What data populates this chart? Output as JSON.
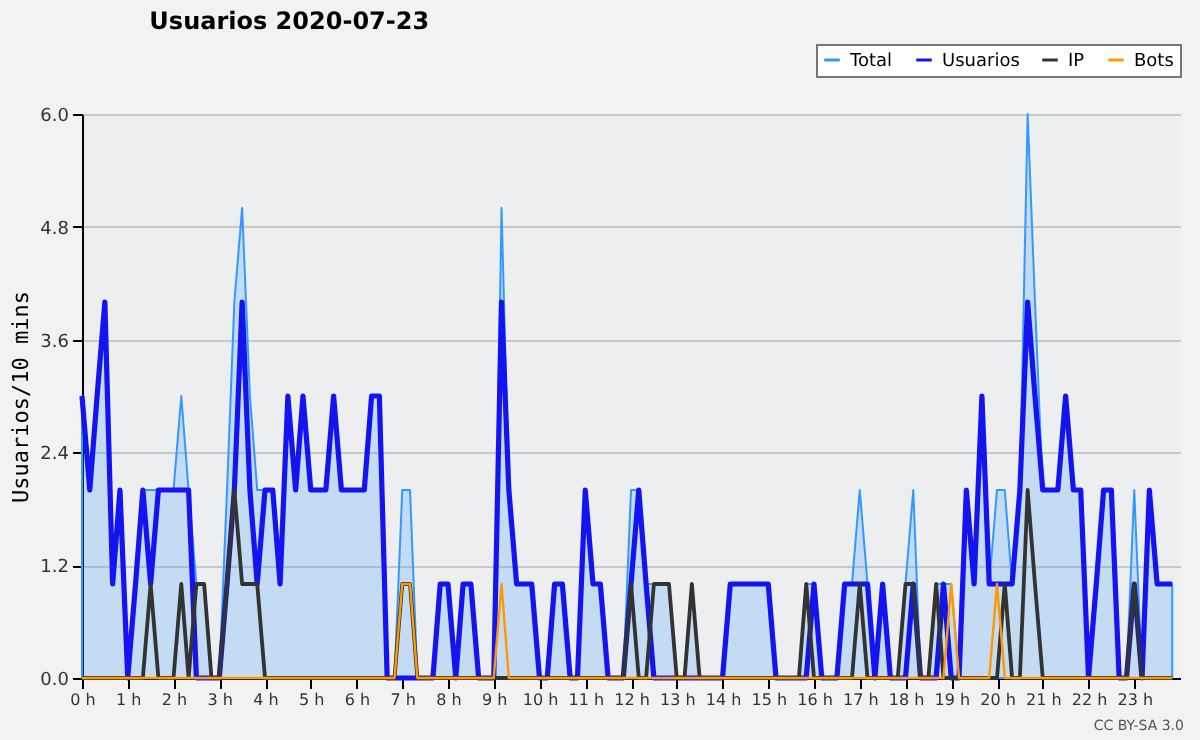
{
  "chart_data": {
    "type": "line",
    "title": "Usuarios  2020-07-23",
    "ylabel": "Usuarios/10 mins",
    "x": [
      0,
      0.17,
      0.33,
      0.5,
      0.67,
      0.83,
      1,
      1.17,
      1.33,
      1.5,
      1.67,
      1.83,
      2,
      2.17,
      2.33,
      2.5,
      2.67,
      2.83,
      3,
      3.17,
      3.33,
      3.5,
      3.67,
      3.83,
      4,
      4.17,
      4.33,
      4.5,
      4.67,
      4.83,
      5,
      5.17,
      5.33,
      5.5,
      5.67,
      5.83,
      6,
      6.17,
      6.33,
      6.5,
      6.67,
      6.83,
      7,
      7.17,
      7.33,
      7.5,
      7.67,
      7.83,
      8,
      8.17,
      8.33,
      8.5,
      8.67,
      8.83,
      9,
      9.17,
      9.33,
      9.5,
      9.67,
      9.83,
      10,
      10.17,
      10.33,
      10.5,
      10.67,
      10.83,
      11,
      11.17,
      11.33,
      11.5,
      11.67,
      11.83,
      12,
      12.17,
      12.33,
      12.5,
      12.67,
      12.83,
      13,
      13.17,
      13.33,
      13.5,
      13.67,
      13.83,
      14,
      14.17,
      14.33,
      14.5,
      14.67,
      14.83,
      15,
      15.17,
      15.33,
      15.5,
      15.67,
      15.83,
      16,
      16.17,
      16.33,
      16.5,
      16.67,
      16.83,
      17,
      17.17,
      17.33,
      17.5,
      17.67,
      17.83,
      18,
      18.17,
      18.33,
      18.5,
      18.67,
      18.83,
      19,
      19.17,
      19.33,
      19.5,
      19.67,
      19.83,
      20,
      20.17,
      20.33,
      20.5,
      20.67,
      20.83,
      21,
      21.17,
      21.33,
      21.5,
      21.67,
      21.83,
      22,
      22.17,
      22.33,
      22.5,
      22.67,
      22.83,
      23,
      23.17,
      23.33,
      23.5,
      23.67,
      23.83
    ],
    "series": [
      {
        "name": "Total",
        "type": "area",
        "color": "#3399ff",
        "values": [
          3,
          2,
          3,
          4,
          1,
          2,
          0,
          1,
          2,
          2,
          2,
          2,
          2,
          3,
          2,
          1,
          1,
          0,
          0,
          2,
          4,
          5,
          3,
          2,
          2,
          2,
          1,
          3,
          2,
          3,
          2,
          2,
          2,
          3,
          2,
          2,
          2,
          2,
          3,
          3,
          0,
          0,
          2,
          2,
          0,
          0,
          0,
          1,
          1,
          0,
          1,
          1,
          0,
          0,
          0,
          5,
          2,
          1,
          1,
          1,
          0,
          0,
          1,
          1,
          0,
          0,
          2,
          1,
          1,
          0,
          0,
          0,
          2,
          2,
          1,
          1,
          1,
          1,
          0,
          0,
          1,
          0,
          0,
          0,
          0,
          1,
          1,
          1,
          1,
          1,
          1,
          0,
          0,
          0,
          0,
          1,
          1,
          0,
          0,
          0,
          1,
          1,
          2,
          1,
          0,
          1,
          0,
          0,
          1,
          2,
          0,
          0,
          1,
          1,
          1,
          0,
          2,
          1,
          3,
          1,
          2,
          2,
          1,
          2,
          6,
          4,
          2,
          2,
          2,
          3,
          2,
          2,
          0,
          1,
          2,
          2,
          0,
          0,
          2,
          0,
          2,
          1,
          1,
          1
        ]
      },
      {
        "name": "Usuarios",
        "type": "line",
        "color": "#1414f0",
        "values": [
          3,
          2,
          3,
          4,
          1,
          2,
          0,
          1,
          2,
          1,
          2,
          2,
          2,
          2,
          2,
          0,
          0,
          0,
          0,
          1,
          2,
          4,
          2,
          1,
          2,
          2,
          1,
          3,
          2,
          3,
          2,
          2,
          2,
          3,
          2,
          2,
          2,
          2,
          3,
          3,
          0,
          0,
          0,
          0,
          0,
          0,
          0,
          1,
          1,
          0,
          1,
          1,
          0,
          0,
          0,
          4,
          2,
          1,
          1,
          1,
          0,
          0,
          1,
          1,
          0,
          0,
          2,
          1,
          1,
          0,
          0,
          0,
          1,
          2,
          1,
          0,
          0,
          0,
          0,
          0,
          0,
          0,
          0,
          0,
          0,
          1,
          1,
          1,
          1,
          1,
          1,
          0,
          0,
          0,
          0,
          0,
          1,
          0,
          0,
          0,
          1,
          1,
          1,
          1,
          0,
          1,
          0,
          0,
          0,
          1,
          0,
          0,
          0,
          1,
          0,
          0,
          2,
          1,
          3,
          1,
          1,
          1,
          1,
          2,
          4,
          3,
          2,
          2,
          2,
          3,
          2,
          2,
          0,
          1,
          2,
          2,
          0,
          0,
          1,
          0,
          2,
          1,
          1,
          1
        ]
      },
      {
        "name": "IP",
        "type": "line",
        "color": "#333333",
        "values": [
          0,
          0,
          0,
          0,
          0,
          0,
          0,
          0,
          0,
          1,
          0,
          0,
          0,
          1,
          0,
          1,
          1,
          0,
          0,
          1,
          2,
          1,
          1,
          1,
          0,
          0,
          0,
          0,
          0,
          0,
          0,
          0,
          0,
          0,
          0,
          0,
          0,
          0,
          0,
          0,
          0,
          0,
          1,
          1,
          0,
          0,
          0,
          0,
          0,
          0,
          0,
          0,
          0,
          0,
          0,
          0,
          0,
          0,
          0,
          0,
          0,
          0,
          0,
          0,
          0,
          0,
          0,
          0,
          0,
          0,
          0,
          0,
          1,
          0,
          0,
          1,
          1,
          1,
          0,
          0,
          1,
          0,
          0,
          0,
          0,
          0,
          0,
          0,
          0,
          0,
          0,
          0,
          0,
          0,
          0,
          1,
          0,
          0,
          0,
          0,
          0,
          0,
          1,
          0,
          0,
          0,
          0,
          0,
          1,
          1,
          0,
          0,
          1,
          0,
          0,
          0,
          0,
          0,
          0,
          0,
          0,
          1,
          0,
          0,
          2,
          1,
          0,
          0,
          0,
          0,
          0,
          0,
          0,
          0,
          0,
          0,
          0,
          0,
          1,
          0,
          0,
          0,
          0,
          0
        ]
      },
      {
        "name": "Bots",
        "type": "line",
        "color": "#ff9900",
        "values": [
          0,
          0,
          0,
          0,
          0,
          0,
          0,
          0,
          0,
          0,
          0,
          0,
          0,
          0,
          0,
          0,
          0,
          0,
          0,
          0,
          0,
          0,
          0,
          0,
          0,
          0,
          0,
          0,
          0,
          0,
          0,
          0,
          0,
          0,
          0,
          0,
          0,
          0,
          0,
          0,
          0,
          0,
          1,
          1,
          0,
          0,
          0,
          0,
          0,
          0,
          0,
          0,
          0,
          0,
          0,
          1,
          0,
          0,
          0,
          0,
          0,
          0,
          0,
          0,
          0,
          0,
          0,
          0,
          0,
          0,
          0,
          0,
          0,
          0,
          0,
          0,
          0,
          0,
          0,
          0,
          0,
          0,
          0,
          0,
          0,
          0,
          0,
          0,
          0,
          0,
          0,
          0,
          0,
          0,
          0,
          0,
          0,
          0,
          0,
          0,
          0,
          0,
          0,
          0,
          0,
          0,
          0,
          0,
          0,
          0,
          0,
          0,
          0,
          0,
          1,
          0,
          0,
          0,
          0,
          0,
          1,
          0,
          0,
          0,
          0,
          0,
          0,
          0,
          0,
          0,
          0,
          0,
          0,
          0,
          0,
          0,
          0,
          0,
          0,
          0,
          0,
          0,
          0,
          0
        ]
      }
    ],
    "xlim": [
      0,
      24
    ],
    "xticks": [
      {
        "value": 0,
        "label": "0 h"
      },
      {
        "value": 1,
        "label": "1 h"
      },
      {
        "value": 2,
        "label": "2 h"
      },
      {
        "value": 3,
        "label": "3 h"
      },
      {
        "value": 4,
        "label": "4 h"
      },
      {
        "value": 5,
        "label": "5 h"
      },
      {
        "value": 6,
        "label": "6 h"
      },
      {
        "value": 7,
        "label": "7 h"
      },
      {
        "value": 8,
        "label": "8 h"
      },
      {
        "value": 9,
        "label": "9 h"
      },
      {
        "value": 10,
        "label": "10 h"
      },
      {
        "value": 11,
        "label": "11 h"
      },
      {
        "value": 12,
        "label": "12 h"
      },
      {
        "value": 13,
        "label": "13 h"
      },
      {
        "value": 14,
        "label": "14 h"
      },
      {
        "value": 15,
        "label": "15 h"
      },
      {
        "value": 16,
        "label": "16 h"
      },
      {
        "value": 17,
        "label": "17 h"
      },
      {
        "value": 18,
        "label": "18 h"
      },
      {
        "value": 19,
        "label": "19 h"
      },
      {
        "value": 20,
        "label": "20 h"
      },
      {
        "value": 21,
        "label": "21 h"
      },
      {
        "value": 22,
        "label": "22 h"
      },
      {
        "value": 23,
        "label": "23 h"
      }
    ],
    "ylim": [
      0,
      6
    ],
    "yticks": [
      {
        "value": 0,
        "label": "0.0"
      },
      1.2,
      2.4,
      3.6,
      4.8,
      {
        "value": 6,
        "label": "6.0"
      }
    ],
    "grid": "y",
    "legend": "top right",
    "line_style": "solid",
    "annotations": [
      "CC BY-SA 3.0"
    ]
  }
}
